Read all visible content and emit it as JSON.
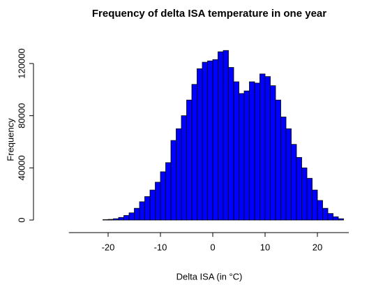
{
  "chart_data": {
    "type": "histogram",
    "title": "Frequency of delta ISA temperature in one year",
    "x_label": "Delta ISA (in °C)",
    "y_label": "Frequency",
    "color": "#0000ff",
    "edge_color": "#000000",
    "bins": [
      -21,
      -20,
      -19,
      -18,
      -17,
      -16,
      -15,
      -14,
      -13,
      -12,
      -11,
      -10,
      -9,
      -8,
      -7,
      -6,
      -5,
      -4,
      -3,
      -2,
      -1,
      0,
      1,
      2,
      3,
      4,
      5,
      6,
      7,
      8,
      9,
      10,
      11,
      12,
      13,
      14,
      15,
      16,
      17,
      18,
      19,
      20,
      21,
      22,
      23,
      24,
      25
    ],
    "values": [
      300,
      500,
      1000,
      2000,
      3500,
      5500,
      9000,
      14000,
      18000,
      23000,
      29000,
      37000,
      44000,
      61000,
      70000,
      80000,
      92000,
      104000,
      116000,
      121000,
      122000,
      123000,
      129000,
      130000,
      117000,
      106000,
      97000,
      99000,
      106000,
      105000,
      112000,
      110000,
      103000,
      92000,
      79000,
      70000,
      58000,
      48000,
      40000,
      32000,
      23000,
      15000,
      9000,
      5000,
      2500,
      1000
    ],
    "xlim": [
      -27.5,
      26
    ],
    "ylim": [
      0,
      131000
    ],
    "xticks": [
      -20,
      -10,
      0,
      10,
      20
    ],
    "yticks": [
      0,
      40000,
      80000,
      120000
    ]
  }
}
